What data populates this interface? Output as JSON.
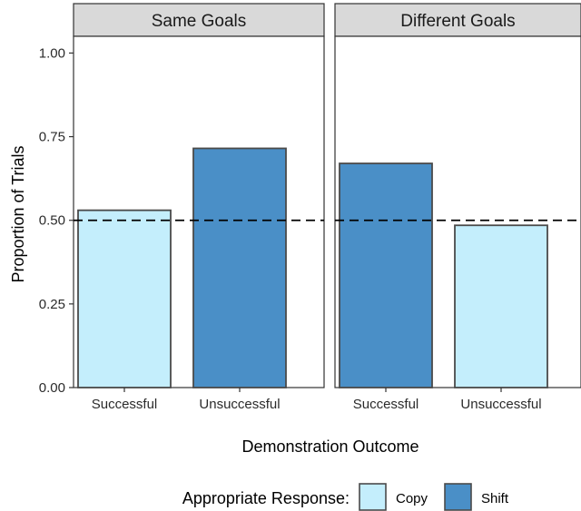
{
  "chart_data": {
    "type": "bar",
    "xlabel": "Demonstration Outcome",
    "ylabel": "Proportion of Trials",
    "ylim": [
      0,
      1.05
    ],
    "yticks": [
      0,
      0.25,
      0.5,
      0.75,
      1.0
    ],
    "ytick_labels": [
      "0.00",
      "0.25",
      "0.50",
      "0.75",
      "1.00"
    ],
    "reference_line": {
      "y": 0.5,
      "style": "dashed"
    },
    "categories": [
      "Successful",
      "Unsuccessful"
    ],
    "panels": [
      {
        "title": "Same Goals",
        "bars": [
          {
            "category": "Successful",
            "value": 0.53,
            "response": "Copy"
          },
          {
            "category": "Unsuccessful",
            "value": 0.715,
            "response": "Shift"
          }
        ]
      },
      {
        "title": "Different Goals",
        "bars": [
          {
            "category": "Successful",
            "value": 0.67,
            "response": "Shift"
          },
          {
            "category": "Unsuccessful",
            "value": 0.485,
            "response": "Copy"
          }
        ]
      }
    ],
    "legend": {
      "title": "Appropriate Response:",
      "position": "bottom",
      "entries": [
        {
          "label": "Copy",
          "color": "#c4eefc"
        },
        {
          "label": "Shift",
          "color": "#4a8fc7"
        }
      ]
    },
    "colors": {
      "Copy": "#c4eefc",
      "Shift": "#4a8fc7",
      "bar_outline": "#4a4a4a",
      "strip_fill": "#d9d9d9",
      "panel_border": "#333333"
    },
    "grid": false
  }
}
